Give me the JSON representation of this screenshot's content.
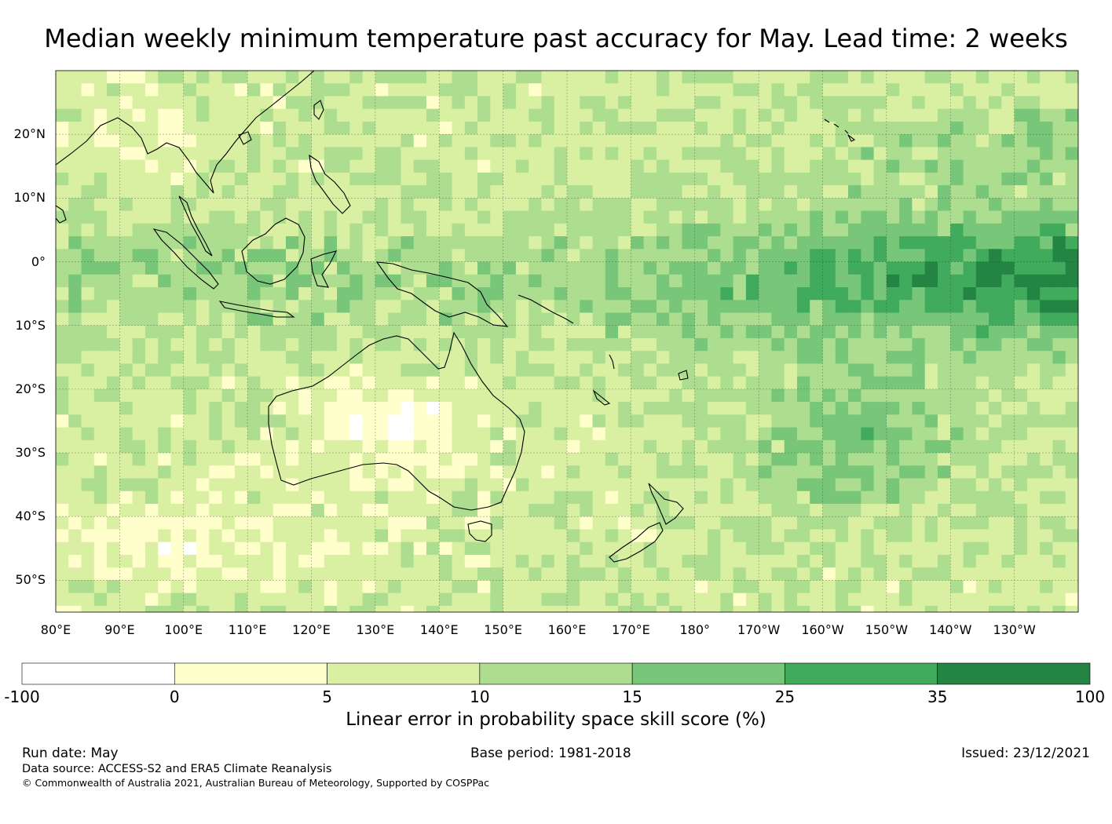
{
  "title": "Median weekly minimum temperature past accuracy for May. Lead time: 2 weeks",
  "lat_labels": [
    "20°N",
    "10°N",
    "0°",
    "10°S",
    "20°S",
    "30°S",
    "40°S",
    "50°S"
  ],
  "lon_labels": [
    "80°E",
    "90°E",
    "100°E",
    "110°E",
    "120°E",
    "130°E",
    "140°E",
    "150°E",
    "160°E",
    "170°E",
    "180°",
    "170°W",
    "160°W",
    "150°W",
    "140°W",
    "130°W"
  ],
  "colorbar": {
    "title": "Linear error in probability space skill score (%)",
    "ticks": [
      "-100",
      "0",
      "5",
      "10",
      "15",
      "25",
      "35",
      "100"
    ],
    "colors": [
      "#ffffff",
      "#ffffcc",
      "#d9f0a3",
      "#addd8e",
      "#78c679",
      "#41ab5d",
      "#238443"
    ]
  },
  "footer": {
    "run_date": "Run date: May",
    "base_period": "Base period: 1981-2018",
    "issued": "Issued: 23/12/2021",
    "data_source": "Data source: ACCESS-S2 and ERA5 Climate Reanalysis",
    "copyright": "© Commonwealth of Australia 2021, Australian Bureau of Meteorology, Supported by COSPPac"
  }
}
